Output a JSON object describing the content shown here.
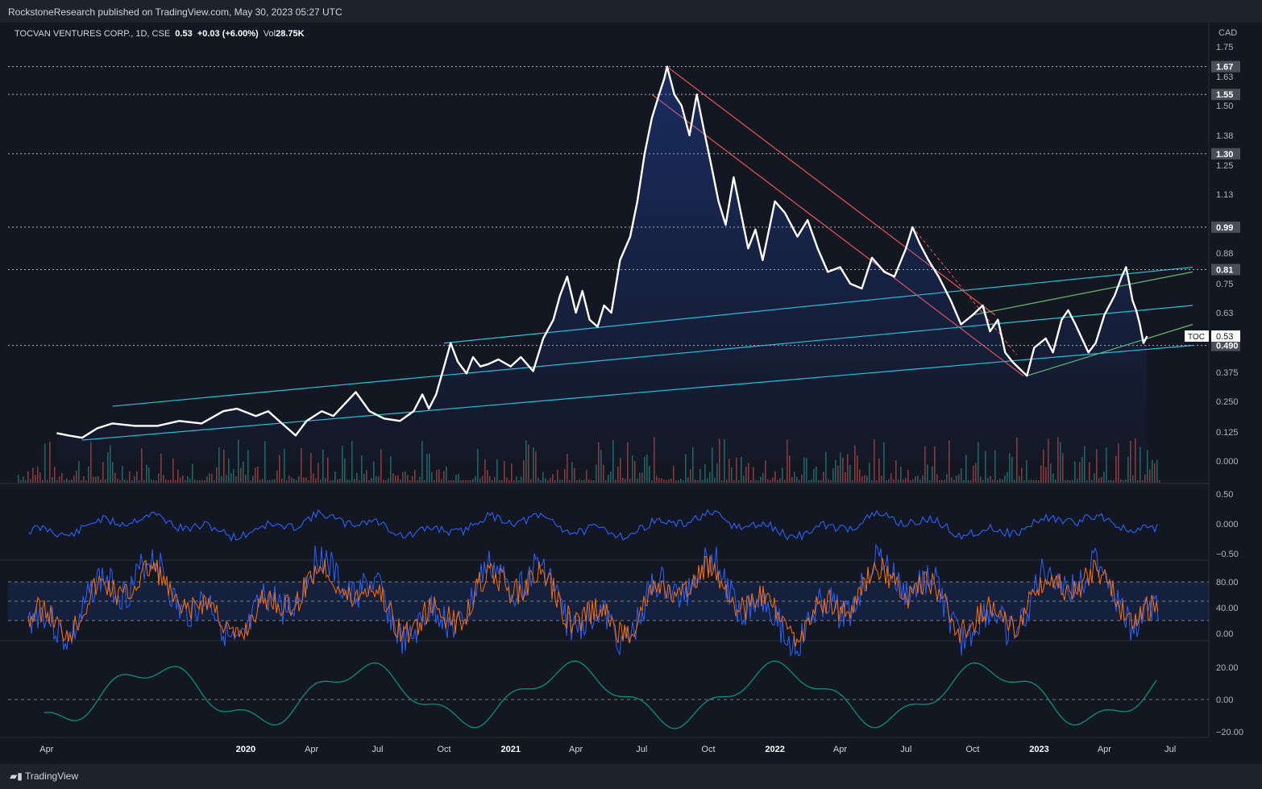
{
  "header": {
    "published_text": "RockstoneResearch published on TradingView.com, May 30, 2023 05:27 UTC"
  },
  "legend": {
    "symbol": "TOCVAN VENTURES CORP., 1D, CSE",
    "price": "0.53",
    "change": "+0.03 (+6.00%)",
    "vol_label": "Vol",
    "vol_value": "28.75K"
  },
  "footer": {
    "brand": "TradingView"
  },
  "colors": {
    "background": "#131722",
    "price_line": "#ffffff",
    "channel_cyan": "#26c6da",
    "channel_red": "#ef5350",
    "channel_green": "#66bb6a",
    "volume_up": "#26a69a",
    "volume_down": "#ef5350",
    "osc_blue": "#2962ff",
    "stoch_orange": "#ff6d00",
    "osc_teal": "#089981"
  },
  "chart_data": {
    "type": "line",
    "currency": "CAD",
    "price_ticks": [
      "1.75",
      "1.63",
      "1.50",
      "1.38",
      "1.25",
      "1.13",
      "0.88",
      "0.75",
      "0.63",
      "0.375",
      "0.250",
      "0.125",
      "0.000"
    ],
    "x_ticks": [
      {
        "label": "Apr",
        "year": false,
        "date": "2019-04-01"
      },
      {
        "label": "2020",
        "year": true,
        "date": "2020-01-01"
      },
      {
        "label": "Apr",
        "year": false,
        "date": "2020-04-01"
      },
      {
        "label": "Jul",
        "year": false,
        "date": "2020-07-01"
      },
      {
        "label": "Oct",
        "year": false,
        "date": "2020-10-01"
      },
      {
        "label": "2021",
        "year": true,
        "date": "2021-01-01"
      },
      {
        "label": "Apr",
        "year": false,
        "date": "2021-04-01"
      },
      {
        "label": "Jul",
        "year": false,
        "date": "2021-07-01"
      },
      {
        "label": "Oct",
        "year": false,
        "date": "2021-10-01"
      },
      {
        "label": "2022",
        "year": true,
        "date": "2022-01-01"
      },
      {
        "label": "Apr",
        "year": false,
        "date": "2022-04-01"
      },
      {
        "label": "Jul",
        "year": false,
        "date": "2022-07-01"
      },
      {
        "label": "Oct",
        "year": false,
        "date": "2022-10-01"
      },
      {
        "label": "2023",
        "year": true,
        "date": "2023-01-01"
      },
      {
        "label": "Apr",
        "year": false,
        "date": "2023-04-01"
      },
      {
        "label": "Jul",
        "year": false,
        "date": "2023-07-01"
      }
    ],
    "horizontal_levels": [
      "1.67",
      "1.55",
      "1.30",
      "0.99",
      "0.81",
      "0.490"
    ],
    "last_price_label": {
      "symbol": "TOC",
      "value": "0.53"
    },
    "price_series": [
      [
        "2019-04-15",
        0.12
      ],
      [
        "2019-05-01",
        0.11
      ],
      [
        "2019-05-20",
        0.1
      ],
      [
        "2019-06-10",
        0.14
      ],
      [
        "2019-07-01",
        0.16
      ],
      [
        "2019-08-01",
        0.15
      ],
      [
        "2019-09-01",
        0.15
      ],
      [
        "2019-10-01",
        0.17
      ],
      [
        "2019-11-01",
        0.16
      ],
      [
        "2019-12-01",
        0.21
      ],
      [
        "2019-12-20",
        0.22
      ],
      [
        "2020-01-15",
        0.19
      ],
      [
        "2020-02-01",
        0.21
      ],
      [
        "2020-02-20",
        0.16
      ],
      [
        "2020-03-10",
        0.11
      ],
      [
        "2020-03-25",
        0.17
      ],
      [
        "2020-04-15",
        0.21
      ],
      [
        "2020-05-01",
        0.19
      ],
      [
        "2020-05-20",
        0.25
      ],
      [
        "2020-06-01",
        0.29
      ],
      [
        "2020-06-20",
        0.21
      ],
      [
        "2020-07-10",
        0.18
      ],
      [
        "2020-08-01",
        0.17
      ],
      [
        "2020-08-20",
        0.21
      ],
      [
        "2020-09-01",
        0.28
      ],
      [
        "2020-09-10",
        0.22
      ],
      [
        "2020-09-20",
        0.28
      ],
      [
        "2020-10-01",
        0.4
      ],
      [
        "2020-10-10",
        0.5
      ],
      [
        "2020-10-20",
        0.42
      ],
      [
        "2020-11-01",
        0.37
      ],
      [
        "2020-11-10",
        0.44
      ],
      [
        "2020-11-20",
        0.4
      ],
      [
        "2020-12-01",
        0.41
      ],
      [
        "2020-12-15",
        0.43
      ],
      [
        "2021-01-01",
        0.4
      ],
      [
        "2021-01-15",
        0.44
      ],
      [
        "2021-02-01",
        0.38
      ],
      [
        "2021-02-15",
        0.52
      ],
      [
        "2021-03-01",
        0.6
      ],
      [
        "2021-03-10",
        0.7
      ],
      [
        "2021-03-20",
        0.78
      ],
      [
        "2021-04-01",
        0.63
      ],
      [
        "2021-04-10",
        0.72
      ],
      [
        "2021-04-20",
        0.6
      ],
      [
        "2021-05-01",
        0.57
      ],
      [
        "2021-05-10",
        0.66
      ],
      [
        "2021-05-20",
        0.63
      ],
      [
        "2021-06-01",
        0.85
      ],
      [
        "2021-06-15",
        0.95
      ],
      [
        "2021-06-25",
        1.1
      ],
      [
        "2021-07-05",
        1.3
      ],
      [
        "2021-07-15",
        1.45
      ],
      [
        "2021-07-25",
        1.55
      ],
      [
        "2021-08-01",
        1.62
      ],
      [
        "2021-08-05",
        1.67
      ],
      [
        "2021-08-15",
        1.55
      ],
      [
        "2021-08-25",
        1.5
      ],
      [
        "2021-09-05",
        1.38
      ],
      [
        "2021-09-15",
        1.55
      ],
      [
        "2021-09-25",
        1.4
      ],
      [
        "2021-10-05",
        1.25
      ],
      [
        "2021-10-15",
        1.1
      ],
      [
        "2021-10-25",
        1.0
      ],
      [
        "2021-11-05",
        1.2
      ],
      [
        "2021-11-15",
        1.05
      ],
      [
        "2021-11-25",
        0.9
      ],
      [
        "2021-12-05",
        0.98
      ],
      [
        "2021-12-15",
        0.85
      ],
      [
        "2022-01-01",
        1.1
      ],
      [
        "2022-01-15",
        1.05
      ],
      [
        "2022-02-01",
        0.95
      ],
      [
        "2022-02-15",
        1.02
      ],
      [
        "2022-03-01",
        0.9
      ],
      [
        "2022-03-15",
        0.8
      ],
      [
        "2022-04-01",
        0.82
      ],
      [
        "2022-04-15",
        0.75
      ],
      [
        "2022-05-01",
        0.73
      ],
      [
        "2022-05-15",
        0.86
      ],
      [
        "2022-06-01",
        0.8
      ],
      [
        "2022-06-15",
        0.78
      ],
      [
        "2022-07-01",
        0.9
      ],
      [
        "2022-07-10",
        0.99
      ],
      [
        "2022-07-20",
        0.92
      ],
      [
        "2022-08-01",
        0.85
      ],
      [
        "2022-08-15",
        0.78
      ],
      [
        "2022-09-01",
        0.68
      ],
      [
        "2022-09-15",
        0.58
      ],
      [
        "2022-10-01",
        0.62
      ],
      [
        "2022-10-15",
        0.66
      ],
      [
        "2022-10-25",
        0.55
      ],
      [
        "2022-11-05",
        0.6
      ],
      [
        "2022-11-15",
        0.46
      ],
      [
        "2022-11-25",
        0.42
      ],
      [
        "2022-12-05",
        0.39
      ],
      [
        "2022-12-15",
        0.36
      ],
      [
        "2022-12-25",
        0.48
      ],
      [
        "2023-01-10",
        0.52
      ],
      [
        "2023-01-20",
        0.46
      ],
      [
        "2023-02-01",
        0.6
      ],
      [
        "2023-02-10",
        0.64
      ],
      [
        "2023-02-20",
        0.58
      ],
      [
        "2023-03-01",
        0.52
      ],
      [
        "2023-03-10",
        0.46
      ],
      [
        "2023-03-20",
        0.5
      ],
      [
        "2023-04-01",
        0.62
      ],
      [
        "2023-04-15",
        0.7
      ],
      [
        "2023-04-25",
        0.78
      ],
      [
        "2023-05-01",
        0.82
      ],
      [
        "2023-05-05",
        0.76
      ],
      [
        "2023-05-10",
        0.68
      ],
      [
        "2023-05-15",
        0.64
      ],
      [
        "2023-05-20",
        0.58
      ],
      [
        "2023-05-25",
        0.5
      ],
      [
        "2023-05-30",
        0.53
      ]
    ]
  },
  "oscillators": {
    "osc1": {
      "ticks": [
        "0.50",
        "0.000",
        "−0.50"
      ]
    },
    "stochastic": {
      "ticks": [
        "80.00",
        "40.00",
        "0.00"
      ]
    },
    "osc3": {
      "ticks": [
        "20.00",
        "0.00",
        "−20.00"
      ]
    }
  }
}
